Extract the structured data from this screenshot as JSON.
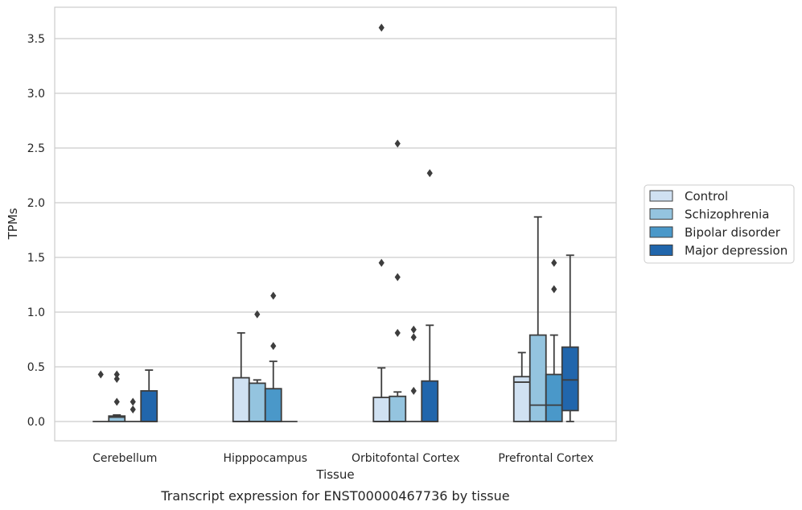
{
  "caption": "Transcript expression for ENST00000467736 by tissue",
  "chart_data": {
    "type": "boxplot",
    "xlabel": "Tissue",
    "ylabel": "TPMs",
    "ylim": [
      -0.18,
      3.78
    ],
    "yticks": [
      0.0,
      0.5,
      1.0,
      1.5,
      2.0,
      2.5,
      3.0,
      3.5
    ],
    "ytick_labels": [
      "0.0",
      "0.5",
      "1.0",
      "1.5",
      "2.0",
      "2.5",
      "3.0",
      "3.5"
    ],
    "grid": "horizontal",
    "legend_position": "right",
    "categories": [
      "Cerebellum",
      "Hipppocampus",
      "Orbitofontal Cortex",
      "Prefrontal Cortex"
    ],
    "series": [
      {
        "name": "Control",
        "color": "#d0e1f2",
        "boxes": [
          {
            "whisker_low": 0.0,
            "q1": 0.0,
            "median": 0.0,
            "q3": 0.0,
            "whisker_high": 0.0,
            "outliers": [
              0.43
            ]
          },
          {
            "whisker_low": 0.0,
            "q1": 0.0,
            "median": 0.0,
            "q3": 0.4,
            "whisker_high": 0.81,
            "outliers": []
          },
          {
            "whisker_low": 0.0,
            "q1": 0.0,
            "median": 0.0,
            "q3": 0.22,
            "whisker_high": 0.49,
            "outliers": [
              1.45,
              3.6
            ]
          },
          {
            "whisker_low": 0.0,
            "q1": 0.0,
            "median": 0.36,
            "q3": 0.41,
            "whisker_high": 0.63,
            "outliers": []
          }
        ]
      },
      {
        "name": "Schizophrenia",
        "color": "#94c4df",
        "boxes": [
          {
            "whisker_low": 0.0,
            "q1": 0.0,
            "median": 0.04,
            "q3": 0.05,
            "whisker_high": 0.06,
            "outliers": [
              0.18,
              0.39,
              0.43
            ]
          },
          {
            "whisker_low": 0.0,
            "q1": 0.0,
            "median": 0.0,
            "q3": 0.35,
            "whisker_high": 0.38,
            "outliers": [
              0.98
            ]
          },
          {
            "whisker_low": 0.0,
            "q1": 0.0,
            "median": 0.0,
            "q3": 0.23,
            "whisker_high": 0.27,
            "outliers": [
              0.81,
              1.32,
              2.54
            ]
          },
          {
            "whisker_low": 0.0,
            "q1": 0.0,
            "median": 0.15,
            "q3": 0.79,
            "whisker_high": 1.87,
            "outliers": []
          }
        ]
      },
      {
        "name": "Bipolar disorder",
        "color": "#4a98c9",
        "boxes": [
          {
            "whisker_low": 0.0,
            "q1": 0.0,
            "median": 0.0,
            "q3": 0.0,
            "whisker_high": 0.0,
            "outliers": [
              0.11,
              0.18
            ]
          },
          {
            "whisker_low": 0.0,
            "q1": 0.0,
            "median": 0.0,
            "q3": 0.3,
            "whisker_high": 0.55,
            "outliers": [
              0.69,
              1.15
            ]
          },
          {
            "whisker_low": 0.0,
            "q1": 0.0,
            "median": 0.0,
            "q3": 0.0,
            "whisker_high": 0.0,
            "outliers": [
              0.28,
              0.77,
              0.84
            ]
          },
          {
            "whisker_low": 0.0,
            "q1": 0.0,
            "median": 0.15,
            "q3": 0.43,
            "whisker_high": 0.79,
            "outliers": [
              1.21,
              1.45
            ]
          }
        ]
      },
      {
        "name": "Major depression",
        "color": "#2166ac",
        "boxes": [
          {
            "whisker_low": 0.0,
            "q1": 0.0,
            "median": 0.0,
            "q3": 0.28,
            "whisker_high": 0.47,
            "outliers": []
          },
          {
            "whisker_low": 0.0,
            "q1": 0.0,
            "median": 0.0,
            "q3": 0.0,
            "whisker_high": 0.0,
            "outliers": []
          },
          {
            "whisker_low": 0.0,
            "q1": 0.0,
            "median": 0.0,
            "q3": 0.37,
            "whisker_high": 0.88,
            "outliers": [
              2.27
            ]
          },
          {
            "whisker_low": 0.0,
            "q1": 0.1,
            "median": 0.38,
            "q3": 0.68,
            "whisker_high": 1.52,
            "outliers": []
          }
        ]
      }
    ]
  }
}
